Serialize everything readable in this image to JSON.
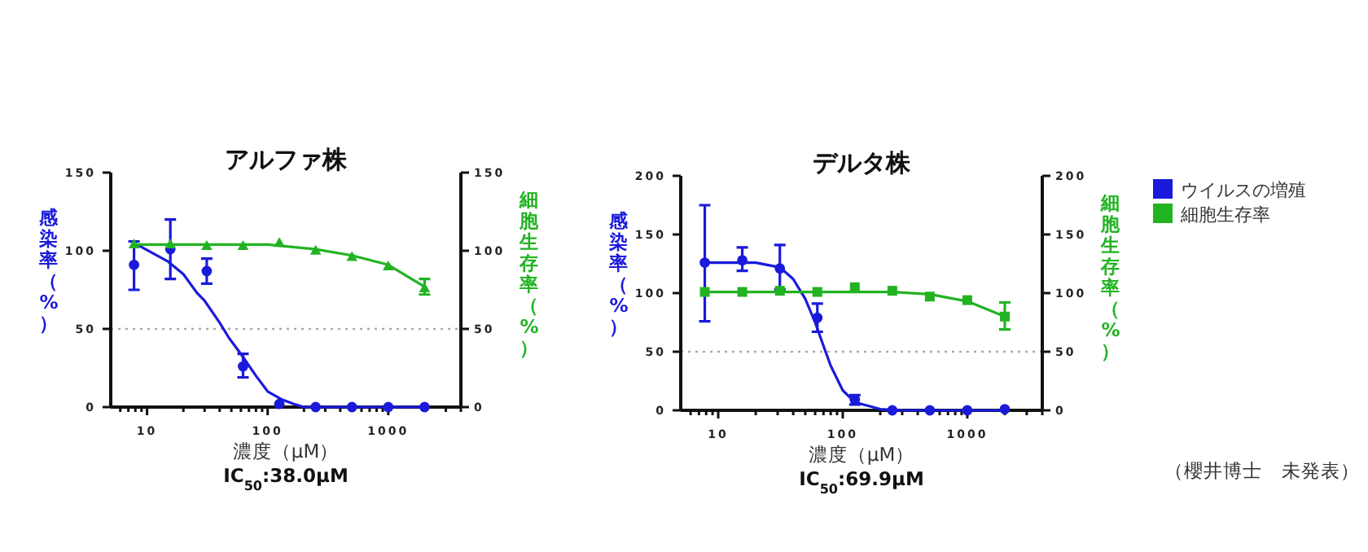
{
  "chart_data": [
    {
      "type": "line",
      "title": "アルファ株",
      "xlabel": "濃度（μM）",
      "ylabel": "感染率（%）",
      "y2label": "細胞生存率（%）",
      "log": "x",
      "xlim": [
        5,
        4000
      ],
      "ylim": [
        0,
        150
      ],
      "y2lim": [
        0,
        150
      ],
      "xticks": [
        10,
        100,
        1000,
        {
          "value": 6,
          "label": null
        },
        {
          "value": 7,
          "label": null
        },
        {
          "value": 8,
          "label": null
        },
        {
          "value": 9,
          "label": null
        },
        {
          "value": 20,
          "label": null
        },
        {
          "value": 30,
          "label": null
        },
        {
          "value": 40,
          "label": null
        },
        {
          "value": 50,
          "label": null
        },
        {
          "value": 60,
          "label": null
        },
        {
          "value": 70,
          "label": null
        },
        {
          "value": 80,
          "label": null
        },
        {
          "value": 90,
          "label": null
        },
        {
          "value": 200,
          "label": null
        },
        {
          "value": 300,
          "label": null
        },
        {
          "value": 400,
          "label": null
        },
        {
          "value": 500,
          "label": null
        },
        {
          "value": 600,
          "label": null
        },
        {
          "value": 700,
          "label": null
        },
        {
          "value": 800,
          "label": null
        },
        {
          "value": 900,
          "label": null
        },
        {
          "value": 2000,
          "label": null
        },
        {
          "value": 3000,
          "label": null
        },
        {
          "value": 4000,
          "label": null
        }
      ],
      "yticks": [
        0,
        50,
        100,
        150
      ],
      "y2ticks": [
        0,
        50,
        100,
        150
      ],
      "series": [
        {
          "type": "scatter",
          "marker": "circle",
          "color": "#1a1adb",
          "x": [
            7.8,
            15.6,
            31.25,
            62.5,
            125,
            250,
            500,
            1000,
            2000
          ],
          "values": [
            91,
            101,
            87,
            26,
            2,
            0,
            0,
            0,
            0
          ],
          "errors": [
            [
              75,
              106
            ],
            [
              82,
              120
            ],
            [
              79,
              95
            ],
            [
              19,
              34
            ],
            null,
            null,
            null,
            null,
            null
          ]
        },
        {
          "type": "line",
          "color": "#1a1adb",
          "x": [
            7.8,
            15,
            20,
            26,
            30,
            40,
            48,
            60,
            80,
            100,
            130,
            165,
            200,
            2000
          ],
          "values": [
            105,
            93,
            85,
            73,
            68,
            54,
            44,
            34,
            20,
            10,
            5,
            2,
            0,
            0
          ]
        },
        {
          "type": "scatter",
          "marker": "triangle",
          "axis": "y2",
          "color": "#22b322",
          "x": [
            7.8,
            15.6,
            31.25,
            62.5,
            125,
            250,
            500,
            1000,
            2000
          ],
          "values": [
            104,
            104,
            103,
            103,
            105,
            100,
            96,
            90,
            76
          ],
          "errors": [
            null,
            null,
            null,
            null,
            null,
            null,
            null,
            null,
            [
              72,
              82
            ]
          ]
        },
        {
          "type": "line",
          "axis": "y2",
          "color": "#22b322",
          "x": [
            7.8,
            100,
            250,
            500,
            1000,
            2000
          ],
          "values": [
            104,
            104,
            101,
            97,
            91,
            77
          ]
        }
      ],
      "ref_lines": [
        {
          "axis": "y",
          "value": 50,
          "color": "#aaaaaa",
          "line_style": "dotted"
        }
      ],
      "annotations": [
        "IC$_{50}$:38.0μM"
      ]
    },
    {
      "type": "line",
      "title": "デルタ株",
      "xlabel": "濃度（μM）",
      "ylabel": "感染率（%）",
      "y2label": "細胞生存率（%）",
      "log": "x",
      "xlim": [
        5,
        4000
      ],
      "ylim": [
        0,
        200
      ],
      "y2lim": [
        0,
        200
      ],
      "xticks": [
        10,
        100,
        1000,
        {
          "value": 6,
          "label": null
        },
        {
          "value": 7,
          "label": null
        },
        {
          "value": 8,
          "label": null
        },
        {
          "value": 9,
          "label": null
        },
        {
          "value": 20,
          "label": null
        },
        {
          "value": 30,
          "label": null
        },
        {
          "value": 40,
          "label": null
        },
        {
          "value": 50,
          "label": null
        },
        {
          "value": 60,
          "label": null
        },
        {
          "value": 70,
          "label": null
        },
        {
          "value": 80,
          "label": null
        },
        {
          "value": 90,
          "label": null
        },
        {
          "value": 200,
          "label": null
        },
        {
          "value": 300,
          "label": null
        },
        {
          "value": 400,
          "label": null
        },
        {
          "value": 500,
          "label": null
        },
        {
          "value": 600,
          "label": null
        },
        {
          "value": 700,
          "label": null
        },
        {
          "value": 800,
          "label": null
        },
        {
          "value": 900,
          "label": null
        },
        {
          "value": 2000,
          "label": null
        },
        {
          "value": 3000,
          "label": null
        },
        {
          "value": 4000,
          "label": null
        }
      ],
      "yticks": [
        0,
        50,
        100,
        150,
        200
      ],
      "y2ticks": [
        0,
        50,
        100,
        150,
        200
      ],
      "legend": "right",
      "series": [
        {
          "type": "scatter",
          "name": "ウイルスの増殖",
          "marker": "circle",
          "color": "#1a1adb",
          "x": [
            7.8,
            15.6,
            31.25,
            62.5,
            125,
            250,
            500,
            1000,
            2000
          ],
          "values": [
            126,
            128,
            121,
            79,
            9,
            0,
            0,
            0,
            1
          ],
          "errors": [
            [
              76,
              175
            ],
            [
              119,
              139
            ],
            [
              103,
              141
            ],
            [
              67,
              91
            ],
            [
              5,
              13
            ],
            null,
            null,
            null,
            null
          ]
        },
        {
          "type": "line",
          "color": "#1a1adb",
          "x": [
            7.8,
            20,
            31.25,
            40,
            50,
            60,
            70,
            80,
            100,
            125,
            200,
            300,
            2000
          ],
          "values": [
            126,
            126,
            122,
            112,
            95,
            75,
            55,
            38,
            17,
            7,
            1,
            0,
            0
          ]
        },
        {
          "type": "scatter",
          "name": "細胞生存率",
          "marker": "square",
          "axis": "y2",
          "color": "#22b322",
          "x": [
            7.8,
            15.6,
            31.25,
            62.5,
            125,
            250,
            500,
            1000,
            2000
          ],
          "values": [
            101,
            101,
            102,
            101,
            105,
            102,
            97,
            94,
            80
          ],
          "errors": [
            null,
            null,
            null,
            null,
            null,
            null,
            null,
            null,
            [
              69,
              92
            ]
          ]
        },
        {
          "type": "line",
          "axis": "y2",
          "color": "#22b322",
          "x": [
            7.8,
            250,
            500,
            1000,
            2000
          ],
          "values": [
            101,
            101,
            99,
            93,
            80
          ]
        }
      ],
      "ref_lines": [
        {
          "axis": "y",
          "value": 50,
          "color": "#aaaaaa",
          "line_style": "dotted"
        }
      ],
      "annotations": [
        "IC$_{50}$:69.9μM",
        "（櫻井博士　未発表）"
      ]
    }
  ]
}
